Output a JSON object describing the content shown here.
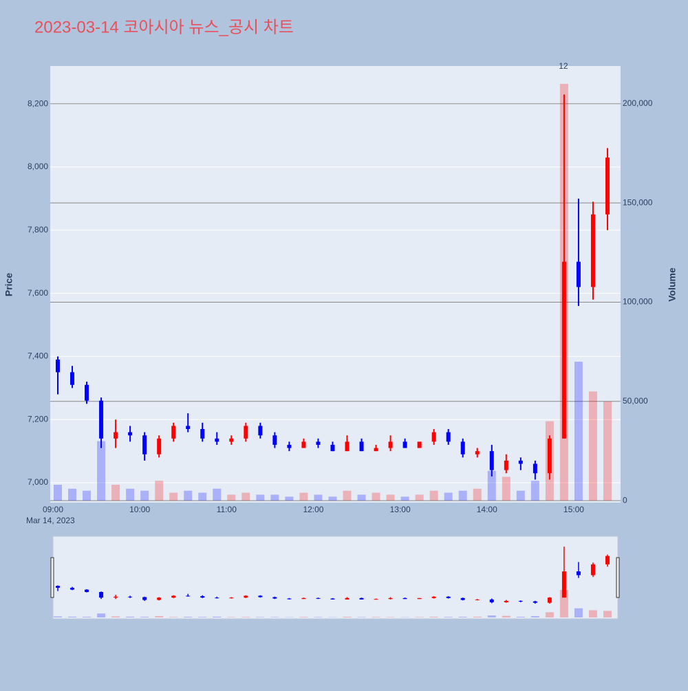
{
  "chart_data": {
    "type": "candlestick",
    "title": "2023-03-14 코아시아 뉴스_공시 차트",
    "ylabel": "Price",
    "y2label": "Volume",
    "x_date_label": "Mar 14, 2023",
    "annotation": "12",
    "x": [
      "09:00",
      "09:10",
      "09:20",
      "09:30",
      "09:40",
      "09:50",
      "10:00",
      "10:10",
      "10:20",
      "10:30",
      "10:40",
      "10:50",
      "11:00",
      "11:10",
      "11:20",
      "11:30",
      "11:40",
      "11:50",
      "12:00",
      "12:10",
      "12:20",
      "12:30",
      "12:40",
      "12:50",
      "13:00",
      "13:10",
      "13:20",
      "13:30",
      "13:40",
      "13:50",
      "14:00",
      "14:10",
      "14:20",
      "14:30",
      "14:40",
      "14:50",
      "15:00",
      "15:10",
      "15:20"
    ],
    "open": [
      7390,
      7350,
      7310,
      7260,
      7140,
      7160,
      7150,
      7090,
      7140,
      7180,
      7170,
      7140,
      7130,
      7140,
      7180,
      7150,
      7120,
      7110,
      7130,
      7120,
      7100,
      7130,
      7100,
      7110,
      7130,
      7110,
      7130,
      7160,
      7130,
      7090,
      7100,
      7040,
      7070,
      7060,
      7030,
      7140,
      7700,
      7620,
      7850
    ],
    "high": [
      7400,
      7370,
      7320,
      7270,
      7200,
      7180,
      7160,
      7150,
      7190,
      7220,
      7190,
      7160,
      7150,
      7190,
      7190,
      7160,
      7130,
      7140,
      7140,
      7130,
      7150,
      7140,
      7120,
      7150,
      7140,
      7130,
      7170,
      7170,
      7140,
      7110,
      7120,
      7090,
      7080,
      7070,
      7150,
      8230,
      7900,
      7890,
      8060
    ],
    "low": [
      7280,
      7300,
      7250,
      7110,
      7110,
      7130,
      7070,
      7080,
      7130,
      7160,
      7130,
      7120,
      7120,
      7130,
      7140,
      7110,
      7100,
      7110,
      7110,
      7100,
      7100,
      7100,
      7100,
      7100,
      7110,
      7110,
      7120,
      7120,
      7080,
      7080,
      7020,
      7030,
      7040,
      7010,
      7010,
      7140,
      7560,
      7580,
      7800
    ],
    "close": [
      7350,
      7310,
      7260,
      7140,
      7160,
      7150,
      7090,
      7140,
      7180,
      7170,
      7140,
      7130,
      7140,
      7180,
      7150,
      7120,
      7110,
      7130,
      7120,
      7100,
      7130,
      7100,
      7110,
      7130,
      7110,
      7130,
      7160,
      7130,
      7090,
      7100,
      7040,
      7070,
      7060,
      7030,
      7140,
      7700,
      7620,
      7850,
      8030
    ],
    "volume": [
      8000,
      6000,
      5000,
      30000,
      8000,
      6000,
      5000,
      10000,
      4000,
      5000,
      4000,
      6000,
      3000,
      4000,
      3000,
      3000,
      2000,
      4000,
      3000,
      2000,
      5000,
      3000,
      4000,
      3000,
      2000,
      3000,
      5000,
      4000,
      5000,
      6000,
      15000,
      12000,
      5000,
      10000,
      40000,
      210000,
      70000,
      55000,
      50000
    ],
    "up_color": "#ff0000",
    "down_color": "#0000ff",
    "xlim": [
      "09:00",
      "15:30"
    ],
    "xticks": [
      "09:00",
      "10:00",
      "11:00",
      "12:00",
      "13:00",
      "14:00",
      "15:00"
    ],
    "ylim": [
      6937,
      8320
    ],
    "yticks": [
      {
        "value": 7000,
        "label": "7,000"
      },
      {
        "value": 7200,
        "label": "7,200"
      },
      {
        "value": 7400,
        "label": "7,400"
      },
      {
        "value": 7600,
        "label": "7,600"
      },
      {
        "value": 7800,
        "label": "7,800"
      },
      {
        "value": 8000,
        "label": "8,000"
      },
      {
        "value": 8200,
        "label": "8,200"
      }
    ],
    "y2lim": [
      -1000,
      219000
    ],
    "y2ticks": [
      0,
      {
        "value": 50000,
        "label": "50,000"
      },
      {
        "value": 100000,
        "label": "100,000"
      },
      {
        "value": 150000,
        "label": "150,000"
      },
      {
        "value": 200000,
        "label": "200,000"
      }
    ]
  }
}
